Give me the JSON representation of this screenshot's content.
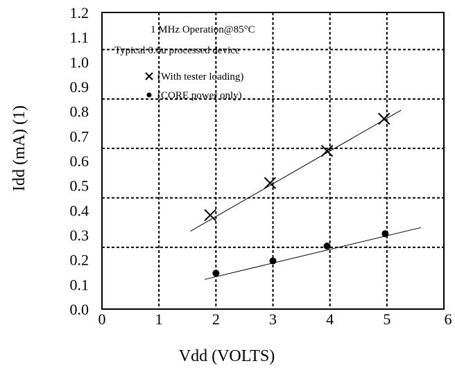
{
  "chart_data": {
    "type": "scatter",
    "title": "",
    "xlabel": "Vdd (VOLTS)",
    "ylabel": "Idd (mA) (1)",
    "xlim": [
      0,
      6
    ],
    "ylim": [
      0.0,
      1.2
    ],
    "x_ticks": [
      0,
      1,
      2,
      3,
      4,
      5,
      6
    ],
    "x_tick_labels": [
      "0",
      "1",
      "2",
      "3",
      "4",
      "5",
      "6"
    ],
    "y_ticks": [
      0.0,
      0.1,
      0.2,
      0.3,
      0.4,
      0.5,
      0.6,
      0.7,
      0.8,
      0.9,
      1.0,
      1.1,
      1.2
    ],
    "y_tick_labels": [
      "0.0",
      "0.1",
      "0.2",
      "0.3",
      "0.4",
      "0.5",
      "0.6",
      "0.7",
      "0.8",
      "0.9",
      "1.0",
      "1.1",
      "1.2"
    ],
    "grid": {
      "vertical_x": [
        1,
        2,
        3,
        4,
        5
      ],
      "horizontal_y": [
        0.25,
        0.45,
        0.65,
        0.85,
        1.05
      ]
    },
    "annotations": [
      "1 MHz Operation@85°C",
      "Typical 0.6u processed device"
    ],
    "legend_position": "top-left",
    "series": [
      {
        "name": "(With tester loading)",
        "marker": "x",
        "x": [
          1.9,
          2.95,
          3.95,
          4.95
        ],
        "y": [
          0.38,
          0.51,
          0.64,
          0.77
        ],
        "trendline": [
          [
            1.55,
            0.315
          ],
          [
            5.25,
            0.805
          ]
        ]
      },
      {
        "name": "(CORE power only)",
        "marker": "dot",
        "x": [
          2.0,
          3.0,
          3.95,
          4.97
        ],
        "y": [
          0.145,
          0.195,
          0.255,
          0.305
        ],
        "trendline": [
          [
            1.8,
            0.12
          ],
          [
            5.6,
            0.33
          ]
        ]
      }
    ]
  }
}
